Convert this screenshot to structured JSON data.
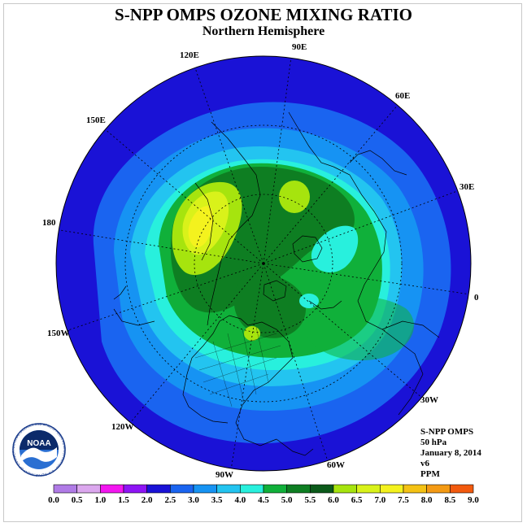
{
  "header": {
    "title": "S-NPP OMPS OZONE MIXING RATIO",
    "subtitle": "Northern Hemisphere"
  },
  "map": {
    "longitude_labels": [
      "90E",
      "60E",
      "30E",
      "0",
      "30W",
      "60W",
      "90W",
      "120W",
      "150W",
      "180",
      "150E",
      "120E"
    ]
  },
  "info": {
    "instrument": "S-NPP OMPS",
    "level": "50 hPa",
    "date": "January 8, 2014",
    "version": "v6",
    "units": "PPM"
  },
  "logo": {
    "text": "NOAA",
    "ring_text": "NATIONAL OCEANIC AND ATMOSPHERIC ADMINISTRATION · U.S. DEPARTMENT OF COMMERCE"
  },
  "colorbar": {
    "labels": [
      "0.0",
      "0.5",
      "1.0",
      "1.5",
      "2.0",
      "2.5",
      "3.0",
      "3.5",
      "4.0",
      "4.5",
      "5.0",
      "5.5",
      "6.0",
      "6.5",
      "7.0",
      "7.5",
      "8.0",
      "8.5",
      "9.0"
    ],
    "colors": [
      "#b07be6",
      "#dba7ee",
      "#f316f0",
      "#8e14f5",
      "#1a12d6",
      "#1a64f0",
      "#1693f3",
      "#23c4f0",
      "#28f0dd",
      "#10b03a",
      "#0e7e22",
      "#0b5a1a",
      "#a6e40e",
      "#d9f21a",
      "#f4f21e",
      "#f4c214",
      "#f49a14",
      "#f25a0e",
      "#f00a0a",
      "#7a5a3c"
    ]
  }
}
